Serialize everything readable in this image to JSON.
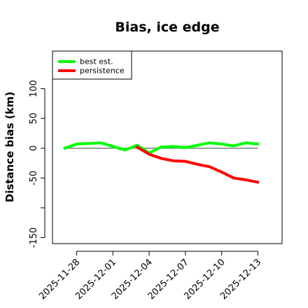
{
  "chart_data": {
    "type": "line",
    "title": "Bias, ice edge",
    "xlabel": "",
    "ylabel": "Distance bias (km)",
    "x_type": "date",
    "xlim": [
      "2025-11-26",
      "2025-12-15"
    ],
    "ylim": [
      -160,
      163
    ],
    "x_ticks": [
      "2025-11-28",
      "2025-12-01",
      "2025-12-04",
      "2025-12-07",
      "2025-12-10",
      "2025-12-13"
    ],
    "y_ticks": [
      -150,
      -100,
      -50,
      0,
      50,
      100
    ],
    "y_tick_labels": [
      "-150",
      "",
      "-50",
      "0",
      "50",
      "100"
    ],
    "reference_line": 0,
    "grid": false,
    "legend_position": "top-left",
    "series": [
      {
        "name": "best est.",
        "color": "#00ff00",
        "x": [
          "2025-11-27",
          "2025-11-28",
          "2025-11-30",
          "2025-12-01",
          "2025-12-02",
          "2025-12-03",
          "2025-12-04",
          "2025-12-05",
          "2025-12-06",
          "2025-12-07",
          "2025-12-08",
          "2025-12-09",
          "2025-12-10",
          "2025-12-11",
          "2025-12-12",
          "2025-12-13"
        ],
        "values": [
          0,
          7,
          9,
          3,
          -3,
          5,
          -8,
          2,
          3,
          1,
          5,
          9,
          7,
          4,
          9,
          7
        ]
      },
      {
        "name": "persistence",
        "color": "#ff0000",
        "x": [
          "2025-12-03",
          "2025-12-04",
          "2025-12-05",
          "2025-12-06",
          "2025-12-07",
          "2025-12-08",
          "2025-12-09",
          "2025-12-10",
          "2025-12-11",
          "2025-12-12",
          "2025-12-13"
        ],
        "values": [
          2,
          -10,
          -17,
          -21,
          -22,
          -27,
          -31,
          -40,
          -50,
          -53,
          -57
        ]
      }
    ]
  }
}
